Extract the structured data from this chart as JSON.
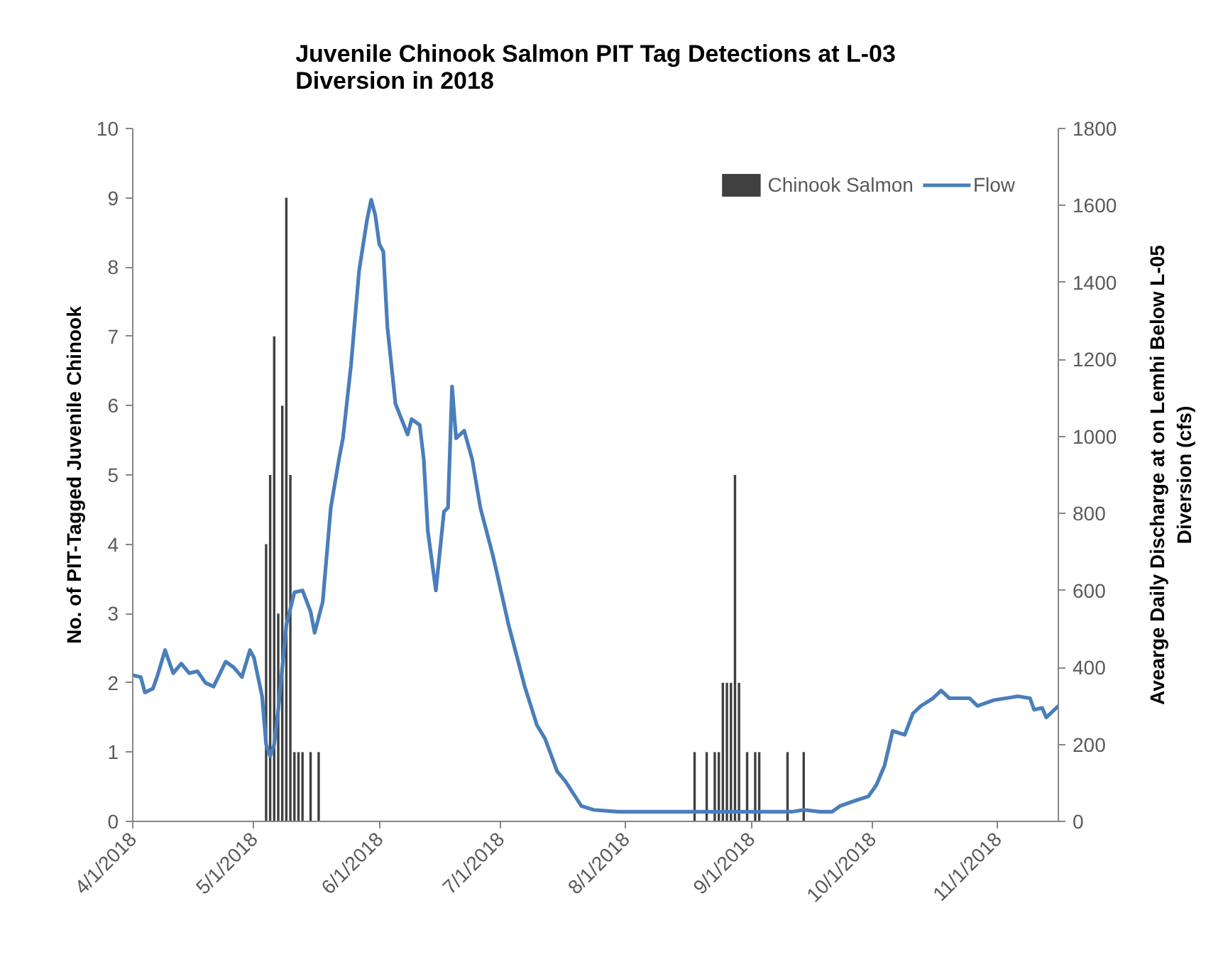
{
  "chart_data": {
    "type": "bar",
    "title": "Juvenile Chinook Salmon PIT Tag Detections at L-03 Diversion in 2018",
    "ylabel": "No. of PIT-Tagged Juvenile Chinook",
    "y2label": "Avearge Daily Discharge at on Lemhi Below L-05 Diversion (cfs)",
    "xlim": [
      "2018-04-01",
      "2018-11-16"
    ],
    "xticks": [
      {
        "value": "2018-04-01",
        "label": "4/1/2018"
      },
      {
        "value": "2018-05-01",
        "label": "5/1/2018"
      },
      {
        "value": "2018-06-01",
        "label": "6/1/2018"
      },
      {
        "value": "2018-07-01",
        "label": "7/1/2018"
      },
      {
        "value": "2018-08-01",
        "label": "8/1/2018"
      },
      {
        "value": "2018-09-01",
        "label": "9/1/2018"
      },
      {
        "value": "2018-10-01",
        "label": "10/1/2018"
      },
      {
        "value": "2018-11-01",
        "label": "11/1/2018"
      }
    ],
    "ylim": [
      0,
      10
    ],
    "yticks": [
      0,
      1,
      2,
      3,
      4,
      5,
      6,
      7,
      8,
      9,
      10
    ],
    "y2lim": [
      0,
      1800
    ],
    "y2ticks": [
      0,
      200,
      400,
      600,
      800,
      1000,
      1200,
      1400,
      1600,
      1800
    ],
    "grid": false,
    "legend": "top right",
    "series": [
      {
        "name": "Chinook Salmon",
        "color": "#404040",
        "x": [
          "2018-05-04",
          "2018-05-05",
          "2018-05-06",
          "2018-05-07",
          "2018-05-08",
          "2018-05-09",
          "2018-05-10",
          "2018-05-11",
          "2018-05-12",
          "2018-05-13",
          "2018-05-15",
          "2018-05-17",
          "2018-08-18",
          "2018-08-21",
          "2018-08-23",
          "2018-08-24",
          "2018-08-25",
          "2018-08-26",
          "2018-08-27",
          "2018-08-28",
          "2018-08-29",
          "2018-08-31",
          "2018-09-02",
          "2018-09-03",
          "2018-09-10",
          "2018-09-14"
        ],
        "values": [
          4,
          5,
          7,
          3,
          6,
          9,
          5,
          1,
          1,
          1,
          1,
          1,
          1,
          1,
          1,
          1,
          2,
          2,
          2,
          5,
          2,
          1,
          1,
          1,
          1,
          1
        ]
      },
      {
        "name": "Flow",
        "type": "line",
        "axis": "y2",
        "color": "#4a7ebb",
        "x": [
          "2018-04-01",
          "2018-04-03",
          "2018-04-04",
          "2018-04-06",
          "2018-04-07",
          "2018-04-09",
          "2018-04-11",
          "2018-04-13",
          "2018-04-15",
          "2018-04-17",
          "2018-04-19",
          "2018-04-21",
          "2018-04-24",
          "2018-04-26",
          "2018-04-28",
          "2018-04-30",
          "2018-05-01",
          "2018-05-03",
          "2018-05-04",
          "2018-05-05",
          "2018-05-06",
          "2018-05-07",
          "2018-05-09",
          "2018-05-11",
          "2018-05-13",
          "2018-05-15",
          "2018-05-16",
          "2018-05-18",
          "2018-05-20",
          "2018-05-22",
          "2018-05-23",
          "2018-05-25",
          "2018-05-27",
          "2018-05-29",
          "2018-05-30",
          "2018-05-31",
          "2018-06-01",
          "2018-06-02",
          "2018-06-03",
          "2018-06-05",
          "2018-06-08",
          "2018-06-09",
          "2018-06-11",
          "2018-06-12",
          "2018-06-13",
          "2018-06-15",
          "2018-06-17",
          "2018-06-18",
          "2018-06-19",
          "2018-06-20",
          "2018-06-22",
          "2018-06-24",
          "2018-06-26",
          "2018-06-29",
          "2018-06-30",
          "2018-07-03",
          "2018-07-07",
          "2018-07-10",
          "2018-07-12",
          "2018-07-15",
          "2018-07-17",
          "2018-07-21",
          "2018-07-24",
          "2018-07-30",
          "2018-08-09",
          "2018-08-19",
          "2018-08-29",
          "2018-09-08",
          "2018-09-11",
          "2018-09-14",
          "2018-09-18",
          "2018-09-21",
          "2018-09-23",
          "2018-09-27",
          "2018-09-30",
          "2018-10-02",
          "2018-10-04",
          "2018-10-06",
          "2018-10-09",
          "2018-10-11",
          "2018-10-13",
          "2018-10-16",
          "2018-10-18",
          "2018-10-20",
          "2018-10-25",
          "2018-10-27",
          "2018-10-31",
          "2018-11-06",
          "2018-11-09",
          "2018-11-10",
          "2018-11-12",
          "2018-11-13",
          "2018-11-16"
        ],
        "values": [
          380,
          375,
          335,
          345,
          375,
          445,
          385,
          410,
          385,
          390,
          360,
          350,
          415,
          400,
          375,
          445,
          425,
          325,
          200,
          170,
          200,
          290,
          510,
          595,
          600,
          545,
          490,
          570,
          815,
          940,
          995,
          1185,
          1430,
          1565,
          1615,
          1575,
          1500,
          1480,
          1285,
          1085,
          1005,
          1045,
          1030,
          940,
          755,
          600,
          805,
          815,
          1130,
          995,
          1015,
          940,
          815,
          695,
          650,
          510,
          350,
          250,
          215,
          130,
          105,
          40,
          30,
          25,
          25,
          25,
          25,
          25,
          25,
          30,
          25,
          25,
          40,
          55,
          65,
          95,
          145,
          235,
          225,
          280,
          300,
          320,
          340,
          320,
          320,
          300,
          315,
          325,
          320,
          290,
          295,
          270,
          300
        ]
      }
    ]
  }
}
